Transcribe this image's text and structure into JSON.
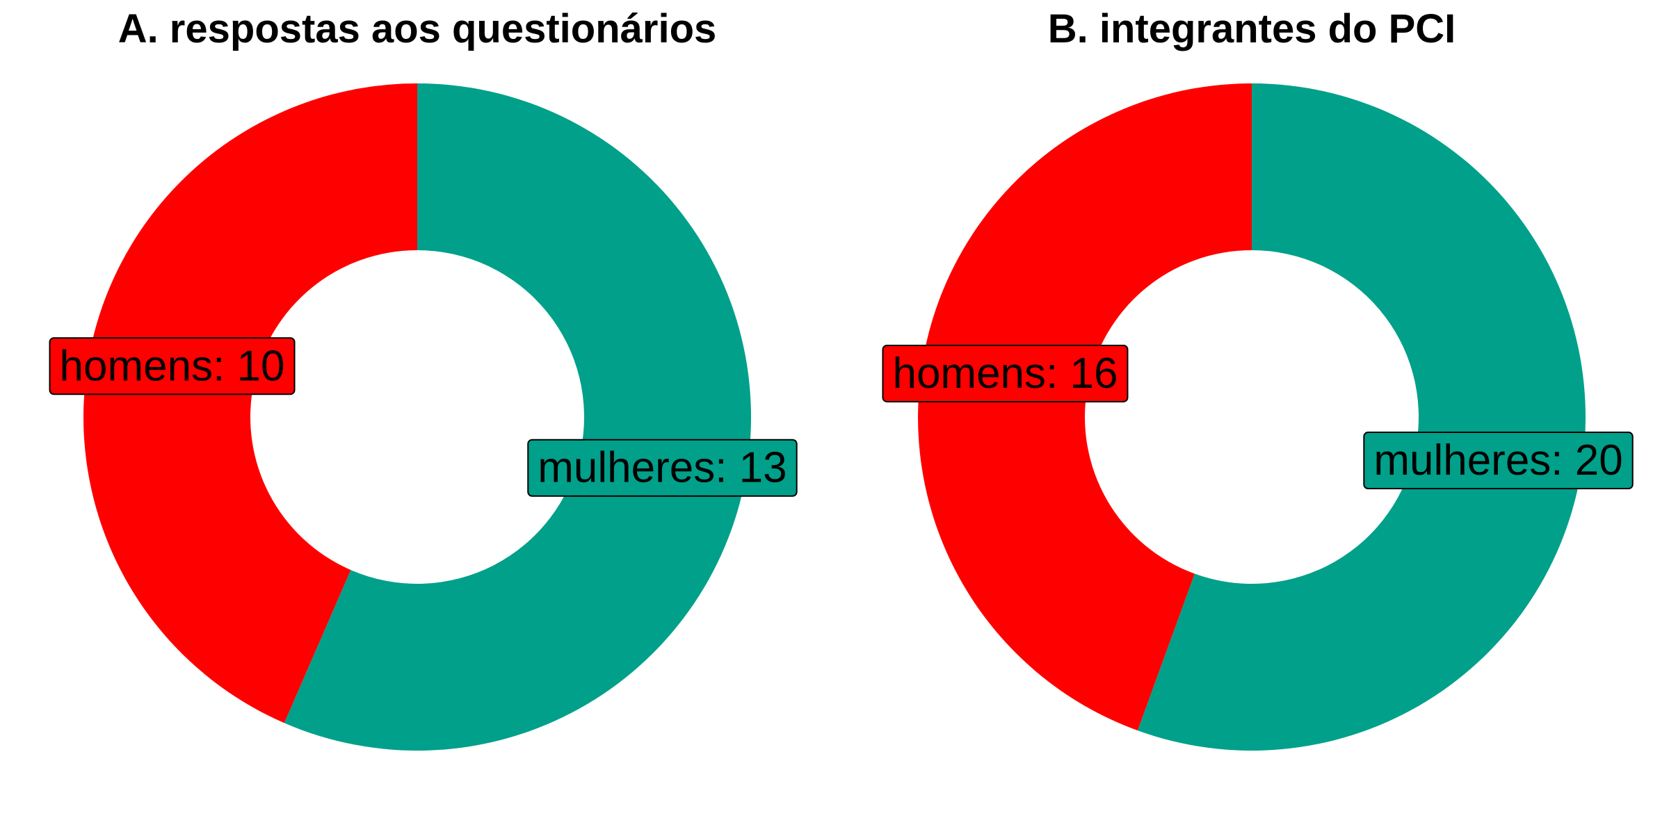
{
  "chart_data": [
    {
      "type": "pie",
      "donut": true,
      "title": "A. respostas aos questionários",
      "slices": [
        {
          "name": "homens",
          "value": 10,
          "label": "homens: 10",
          "color": "#ff0000"
        },
        {
          "name": "mulheres",
          "value": 13,
          "label": "mulheres: 13",
          "color": "#00a08a"
        }
      ]
    },
    {
      "type": "pie",
      "donut": true,
      "title": "B. integrantes do PCI",
      "slices": [
        {
          "name": "homens",
          "value": 16,
          "label": "homens: 16",
          "color": "#ff0000"
        },
        {
          "name": "mulheres",
          "value": 20,
          "label": "mulheres: 20",
          "color": "#00a08a"
        }
      ]
    }
  ]
}
